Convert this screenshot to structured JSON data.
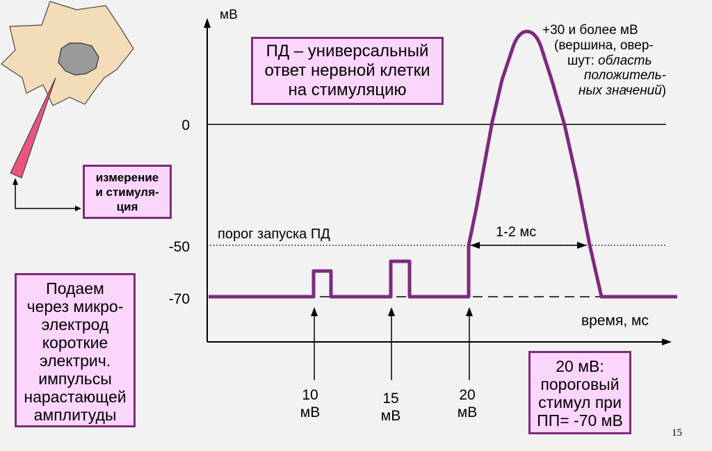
{
  "y_axis_label": "мВ",
  "x_axis_label": "время, мс",
  "y_ticks": [
    "0",
    "-50",
    "-70"
  ],
  "threshold_label": "порог запуска ПД",
  "duration_label": "1-2 мс",
  "peak_annotation": {
    "line1": "+30 и более мВ",
    "line2": "(вершина, овер-",
    "line3_prefix": "шут: ",
    "line3_italic": "область",
    "line4_italic": "положитель-",
    "line5_italic": "ных значений",
    "line5_suffix": ")"
  },
  "title_box": {
    "lines": [
      "ПД – универсальный",
      "ответ нервной клетки",
      "на стимуляцию"
    ]
  },
  "measurement_box": {
    "lines": [
      "измерение",
      "и стимуля-",
      "ция"
    ]
  },
  "left_box": {
    "lines": [
      "Подаем",
      "через микро-",
      "электрод",
      "короткие",
      "электрич.",
      "импульсы",
      "нарастающей",
      "амплитуды"
    ]
  },
  "threshold_box": {
    "lines": [
      "20 мВ:",
      "пороговый",
      "стимул при",
      "ПП= -70 мВ"
    ]
  },
  "stimuli": [
    {
      "value": "10",
      "unit": "мВ"
    },
    {
      "value": "15",
      "unit": "мВ"
    },
    {
      "value": "20",
      "unit": "мВ"
    }
  ],
  "page_number": "15",
  "colors": {
    "trace": "#7d2a7d",
    "box_fill": "#fcd5fc",
    "box_border": "#7d2a7d",
    "cell": "#f3dcb8",
    "nucleus": "#9a9a9a",
    "electrode": "#e8567d"
  }
}
